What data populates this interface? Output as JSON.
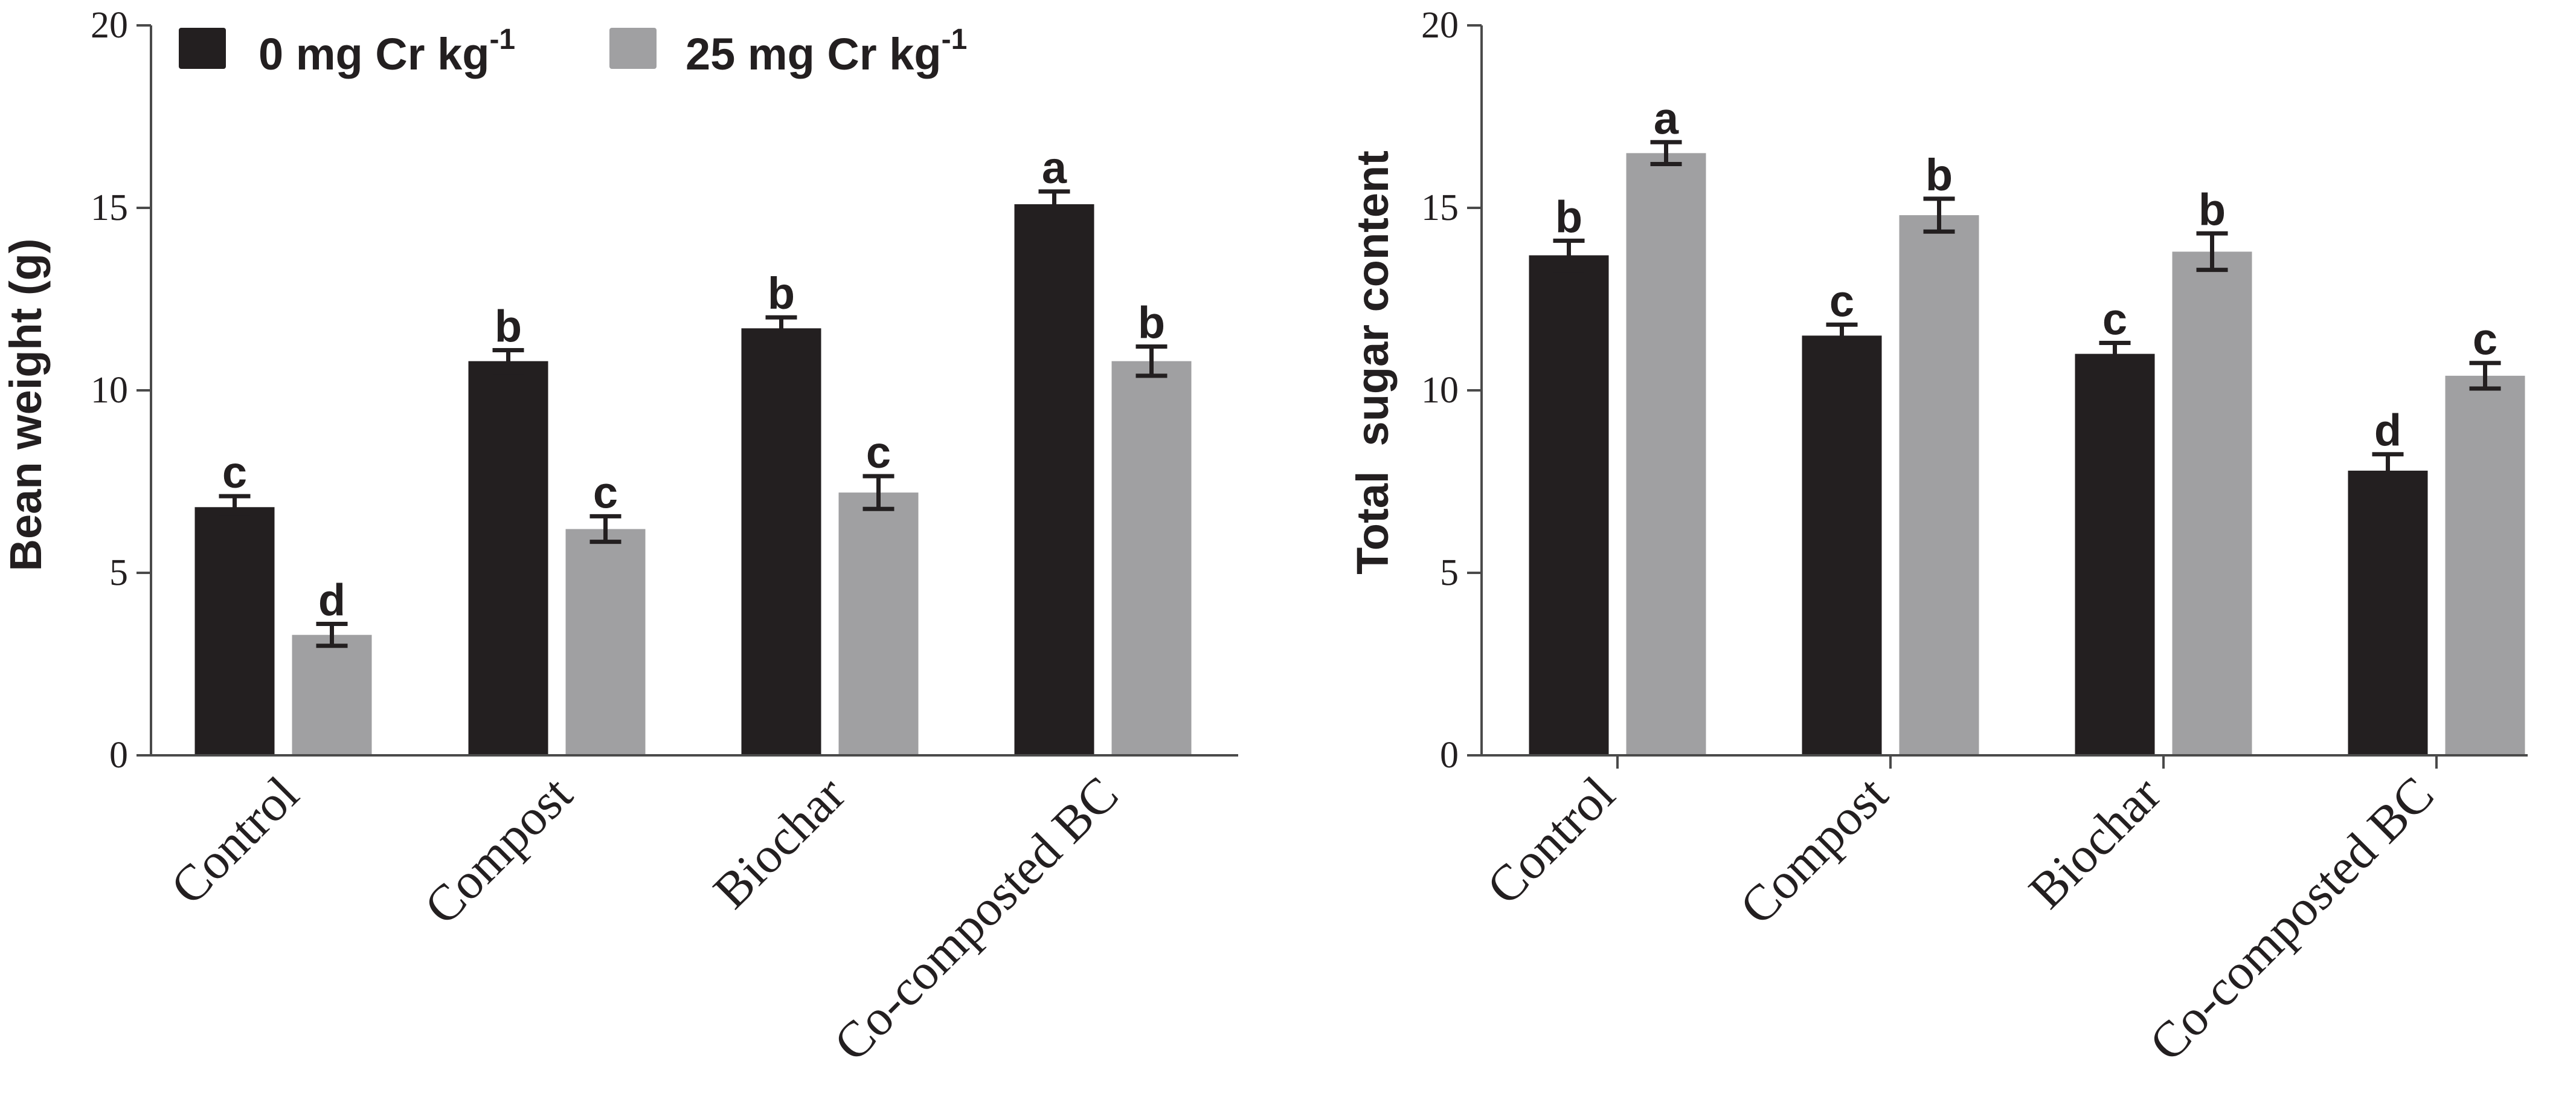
{
  "colors": {
    "series_0": "#231f20",
    "series_25": "#a0a0a2",
    "axis": "#4a4a4a",
    "text": "#231f20"
  },
  "legend": {
    "items": [
      {
        "base": "0 mg Cr kg",
        "sup": "-1",
        "color_key": "series_0"
      },
      {
        "base": "25 mg Cr kg",
        "sup": "-1",
        "color_key": "series_25"
      }
    ],
    "placement": "top-left"
  },
  "chart_data": [
    {
      "type": "bar",
      "title": "",
      "xlabel": "",
      "ylabel": "Bean weight (g)",
      "ylim": [
        0,
        20
      ],
      "yticks": [
        "0",
        "5",
        "10",
        "15",
        "20"
      ],
      "categories": [
        "Control",
        "Compost",
        "Biochar",
        "Co-composted BC"
      ],
      "series": [
        {
          "name": "0 mg Cr kg-1",
          "values": [
            6.8,
            10.8,
            11.7,
            15.1
          ],
          "errors": [
            0.3,
            0.3,
            0.3,
            0.35
          ],
          "letters": [
            "c",
            "b",
            "b",
            "a"
          ]
        },
        {
          "name": "25 mg Cr kg-1",
          "values": [
            3.3,
            6.2,
            7.2,
            10.8
          ],
          "errors": [
            0.3,
            0.35,
            0.45,
            0.4
          ],
          "letters": [
            "d",
            "c",
            "c",
            "b"
          ]
        }
      ]
    },
    {
      "type": "bar",
      "title": "",
      "xlabel": "",
      "ylabel": "Total  sugar content",
      "ylim": [
        0,
        20
      ],
      "yticks": [
        "0",
        "5",
        "10",
        "15",
        "20"
      ],
      "categories": [
        "Control",
        "Compost",
        "Biochar",
        "Co-composted BC"
      ],
      "series": [
        {
          "name": "0 mg Cr kg-1",
          "values": [
            13.7,
            11.5,
            11.0,
            7.8
          ],
          "errors": [
            0.4,
            0.3,
            0.3,
            0.45
          ],
          "letters": [
            "b",
            "c",
            "c",
            "d"
          ]
        },
        {
          "name": "25 mg Cr kg-1",
          "values": [
            16.5,
            14.8,
            13.8,
            10.4
          ],
          "errors": [
            0.3,
            0.45,
            0.5,
            0.35
          ],
          "letters": [
            "a",
            "b",
            "b",
            "c"
          ]
        }
      ]
    }
  ]
}
